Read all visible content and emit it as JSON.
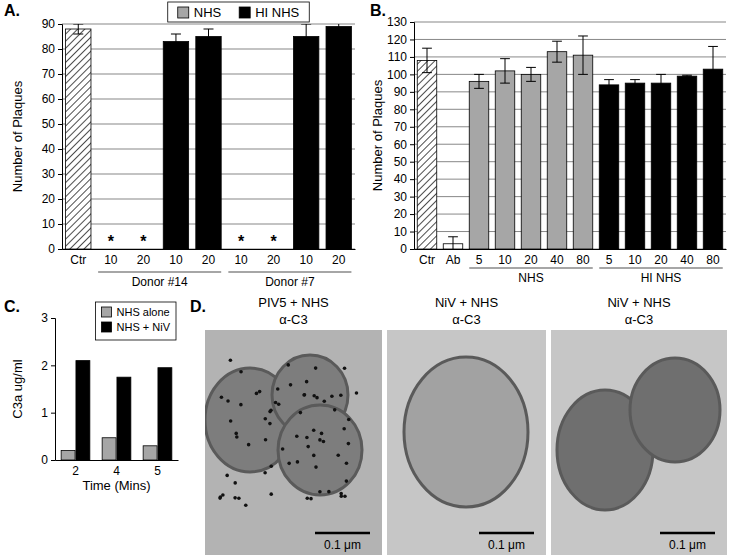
{
  "chart_data": [
    {
      "type": "bar",
      "title": "A.",
      "y_label": "Number of Plaques",
      "categories": [
        "Ctr",
        "10",
        "20",
        "10",
        "20",
        "10",
        "20",
        "10",
        "20"
      ],
      "series": [
        {
          "marker": "hatched",
          "color": "#ffffff",
          "values": [
            88,
            null,
            null,
            null,
            null,
            null,
            null,
            null,
            null
          ],
          "errors": [
            2,
            null,
            null,
            null,
            null,
            null,
            null,
            null,
            null
          ]
        },
        {
          "name": "NHS",
          "color": "#a6a6a6",
          "values": [
            null,
            0,
            0,
            null,
            null,
            0,
            0,
            null,
            null
          ]
        },
        {
          "name": "HI NHS",
          "color": "#000000",
          "values": [
            null,
            null,
            null,
            83,
            85,
            null,
            null,
            85,
            89
          ],
          "errors": [
            null,
            null,
            null,
            3,
            3,
            null,
            null,
            5,
            3
          ]
        }
      ],
      "ylim": [
        0,
        90
      ],
      "yticks": [
        0,
        10,
        20,
        30,
        40,
        50,
        60,
        70,
        80,
        90
      ],
      "grid": true,
      "legend": "top",
      "groups": [
        {
          "label": "Donor #14",
          "from": 1,
          "to": 4
        },
        {
          "label": "Donor #7",
          "from": 5,
          "to": 8
        }
      ],
      "annotations": [
        {
          "text": "*",
          "category": 1
        },
        {
          "text": "*",
          "category": 2
        },
        {
          "text": "*",
          "category": 5
        },
        {
          "text": "*",
          "category": 6
        }
      ]
    },
    {
      "type": "bar",
      "title": "B.",
      "y_label": "Number of Plaques",
      "categories": [
        "Ctr",
        "Ab",
        "5",
        "10",
        "20",
        "40",
        "80",
        "5",
        "10",
        "20",
        "40",
        "80"
      ],
      "series": [
        {
          "marker": "hatched",
          "color": "#ffffff",
          "values": [
            108,
            null,
            null,
            null,
            null,
            null,
            null,
            null,
            null,
            null,
            null,
            null
          ],
          "errors": [
            7,
            null,
            null,
            null,
            null,
            null,
            null,
            null,
            null,
            null,
            null,
            null
          ]
        },
        {
          "color": "#ffffff",
          "values": [
            null,
            3,
            null,
            null,
            null,
            null,
            null,
            null,
            null,
            null,
            null,
            null
          ],
          "errors": [
            null,
            4,
            null,
            null,
            null,
            null,
            null,
            null,
            null,
            null,
            null,
            null
          ]
        },
        {
          "color": "#a6a6a6",
          "values": [
            null,
            null,
            96,
            102,
            100,
            113,
            111,
            null,
            null,
            null,
            null,
            null
          ],
          "errors": [
            null,
            null,
            4,
            7,
            4,
            6,
            11,
            null,
            null,
            null,
            null,
            null
          ]
        },
        {
          "color": "#000000",
          "values": [
            null,
            null,
            null,
            null,
            null,
            null,
            null,
            94,
            95,
            95,
            99,
            103
          ],
          "errors": [
            null,
            null,
            null,
            null,
            null,
            null,
            null,
            3,
            2,
            5,
            0.5,
            13
          ]
        }
      ],
      "ylim": [
        0,
        130
      ],
      "yticks": [
        0,
        10,
        20,
        30,
        40,
        50,
        60,
        70,
        80,
        90,
        100,
        110,
        120,
        130
      ],
      "grid": true,
      "groups": [
        {
          "label": "NHS",
          "from": 2,
          "to": 6
        },
        {
          "label": "HI NHS",
          "from": 7,
          "to": 11
        }
      ]
    },
    {
      "type": "bar",
      "title": "C.",
      "y_label": "C3a ug/ml",
      "x_label": "Time (Mins)",
      "categories": [
        "2",
        "4",
        "5"
      ],
      "series": [
        {
          "name": "NHS alone",
          "color": "#a6a6a6",
          "values": [
            0.2,
            0.47,
            0.3
          ]
        },
        {
          "name": "NHS + NiV",
          "color": "#000000",
          "values": [
            2.1,
            1.75,
            1.95
          ]
        }
      ],
      "ylim": [
        0,
        3
      ],
      "yticks": [
        0,
        1,
        2,
        3
      ],
      "grid": false,
      "legend": "top-right"
    }
  ],
  "micrographs": {
    "title": "D.",
    "images": [
      {
        "label": "PIV5 + NHS",
        "stain": "α-C3",
        "scale_bar": "0.1 μm"
      },
      {
        "label": "NiV + NHS",
        "stain": "α-C3",
        "scale_bar": "0.1 μm"
      },
      {
        "label": "NiV + NHS",
        "stain": "α-C3",
        "scale_bar": "0.1 μm"
      }
    ]
  }
}
